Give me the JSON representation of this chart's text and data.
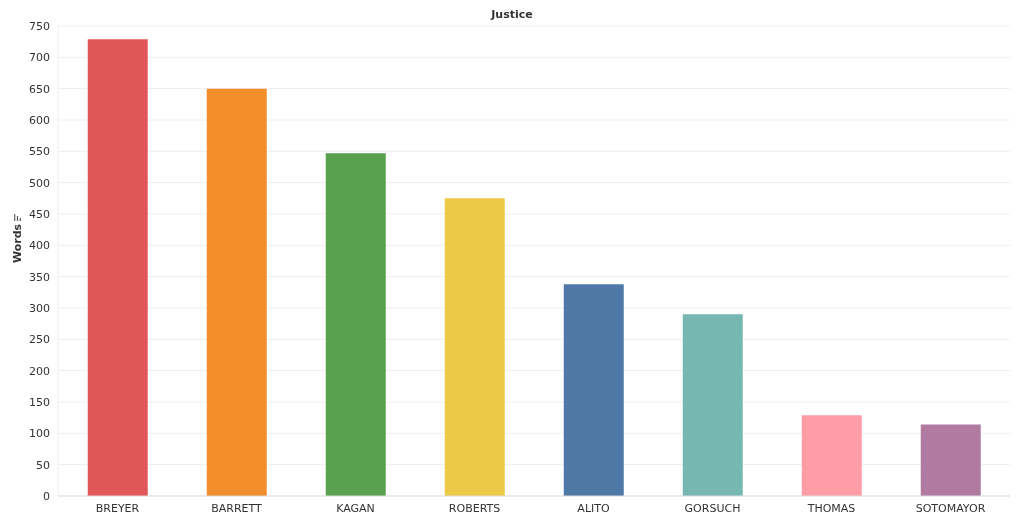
{
  "chart_data": {
    "type": "bar",
    "title": "Justice",
    "ylabel": "Words",
    "categories": [
      "BREYER",
      "BARRETT",
      "KAGAN",
      "ROBERTS",
      "ALITO",
      "GORSUCH",
      "THOMAS",
      "SOTOMAYOR"
    ],
    "values": [
      729,
      650,
      547,
      475,
      338,
      290,
      129,
      114
    ],
    "colors": [
      "#e15759",
      "#f28e2b",
      "#59a14f",
      "#edc948",
      "#4e79a7",
      "#76b7b2",
      "#ff9da7",
      "#b07aa1"
    ],
    "ylim": [
      0,
      750
    ],
    "yticks": [
      0,
      50,
      100,
      150,
      200,
      250,
      300,
      350,
      400,
      450,
      500,
      550,
      600,
      650,
      700,
      750
    ],
    "grid": "y",
    "legend": false
  }
}
